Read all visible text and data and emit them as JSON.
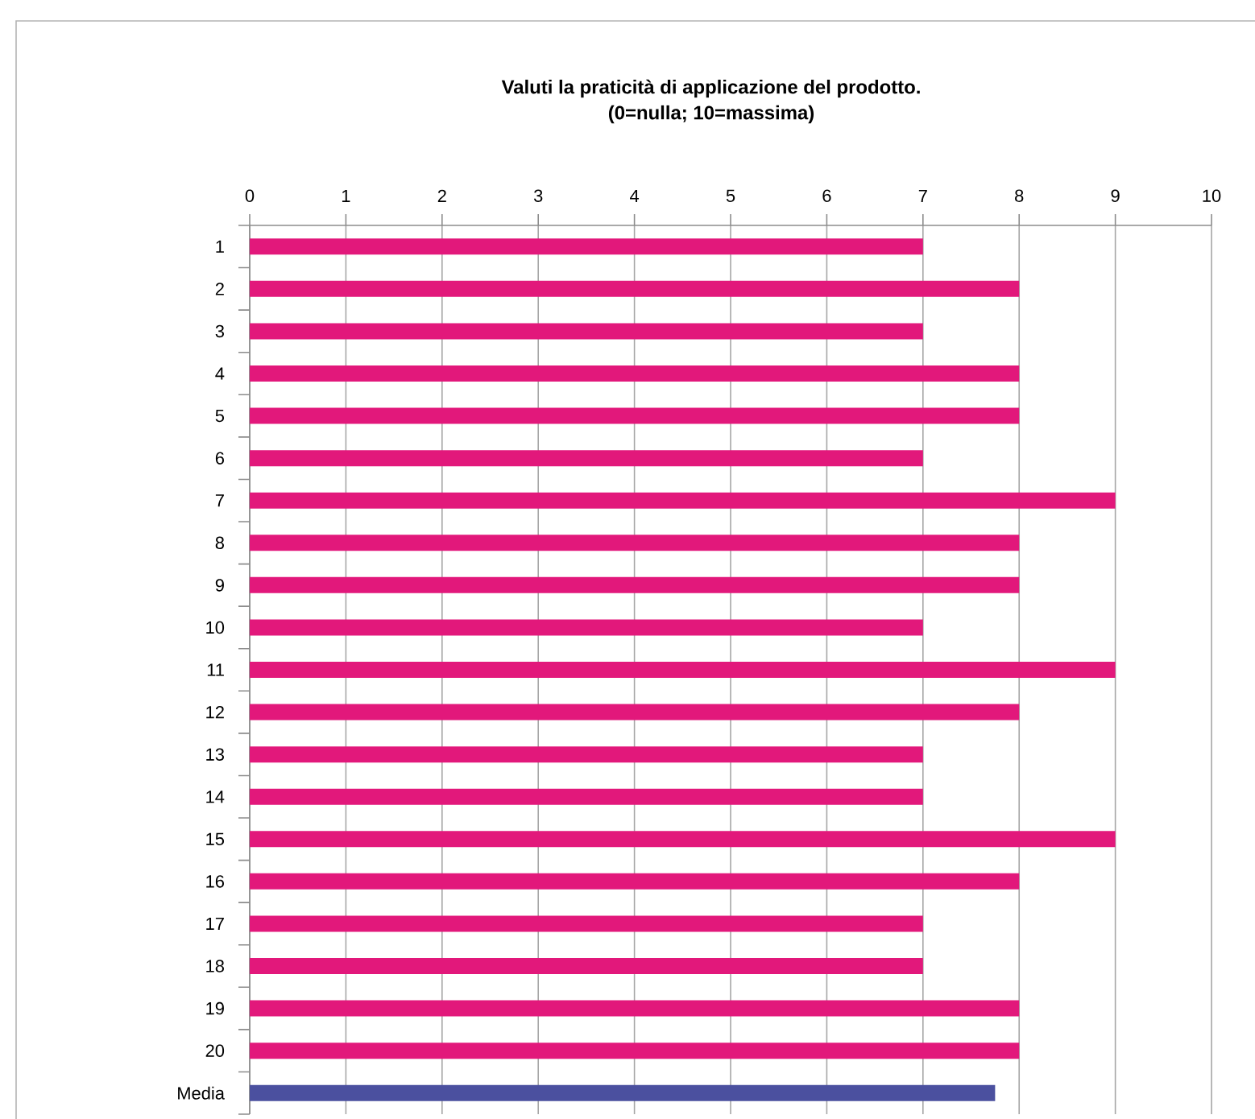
{
  "chart_data": {
    "type": "bar",
    "orientation": "horizontal",
    "title": "Valuti la praticità di applicazione del prodotto.",
    "subtitle": "(0=nulla; 10=massima)",
    "categories": [
      "1",
      "2",
      "3",
      "4",
      "5",
      "6",
      "7",
      "8",
      "9",
      "10",
      "11",
      "12",
      "13",
      "14",
      "15",
      "16",
      "17",
      "18",
      "19",
      "20",
      "Media"
    ],
    "values": [
      7,
      8,
      7,
      8,
      8,
      7,
      9,
      8,
      8,
      7,
      9,
      8,
      7,
      7,
      9,
      8,
      7,
      7,
      8,
      8,
      7.75
    ],
    "colors": [
      "#e2187b",
      "#e2187b",
      "#e2187b",
      "#e2187b",
      "#e2187b",
      "#e2187b",
      "#e2187b",
      "#e2187b",
      "#e2187b",
      "#e2187b",
      "#e2187b",
      "#e2187b",
      "#e2187b",
      "#e2187b",
      "#e2187b",
      "#e2187b",
      "#e2187b",
      "#e2187b",
      "#e2187b",
      "#e2187b",
      "#4b509f"
    ],
    "xlim": [
      0,
      10
    ],
    "xticks": [
      0,
      1,
      2,
      3,
      4,
      5,
      6,
      7,
      8,
      9,
      10
    ],
    "grid": "x"
  }
}
